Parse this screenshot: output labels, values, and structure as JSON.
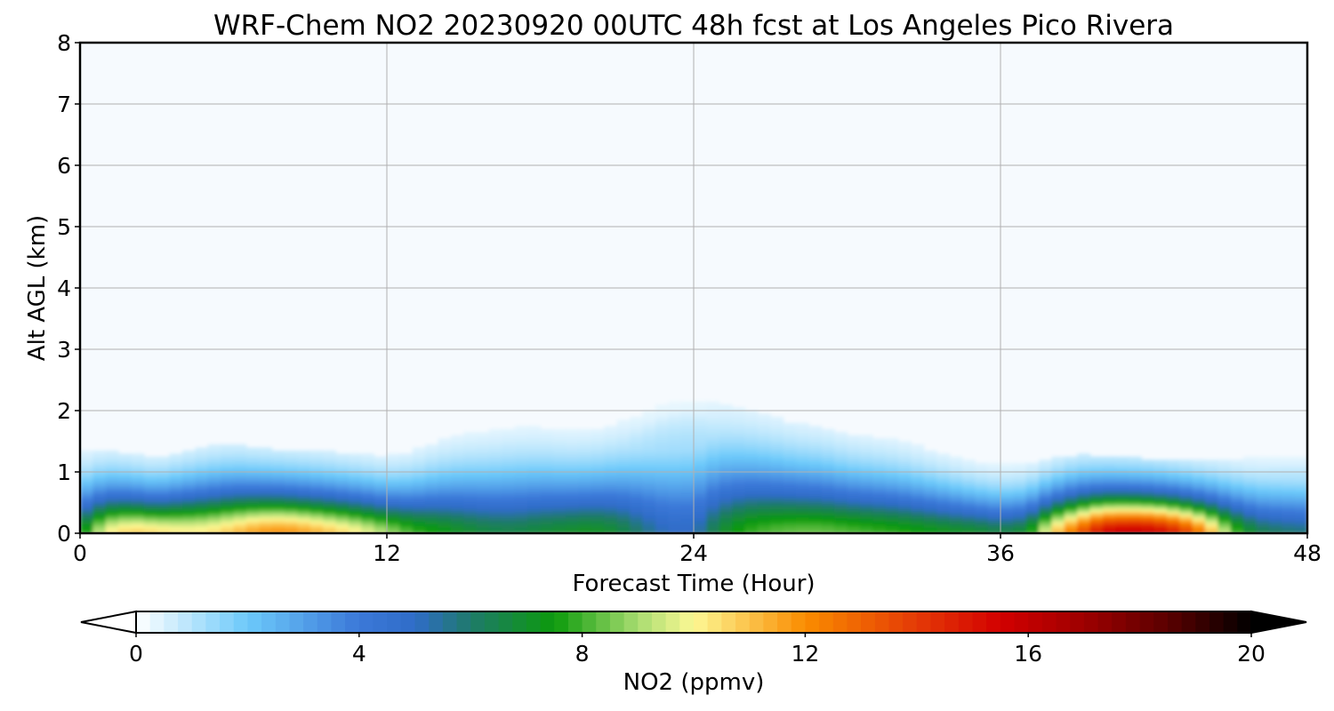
{
  "chart_data": {
    "type": "heatmap",
    "title": "WRF-Chem NO2  20230920 00UTC 48h fcst at Los Angeles Pico Rivera",
    "xlabel": "Forecast Time (Hour)",
    "ylabel": "Alt AGL (km)",
    "xlim": [
      0,
      48
    ],
    "ylim": [
      0,
      8
    ],
    "x_ticks": [
      0,
      12,
      24,
      36,
      48
    ],
    "y_ticks": [
      0,
      1,
      2,
      3,
      4,
      5,
      6,
      7,
      8
    ],
    "grid": true,
    "colorbar": {
      "label": "NO2  (ppmv)",
      "range": [
        0,
        20
      ],
      "ticks": [
        0,
        4,
        8,
        12,
        16,
        20
      ],
      "extend": "both",
      "color_stops": [
        {
          "v": 0,
          "c": "#ffffff"
        },
        {
          "v": 2,
          "c": "#6cc9fa"
        },
        {
          "v": 4,
          "c": "#3b78d8"
        },
        {
          "v": 5,
          "c": "#2f6cc8"
        },
        {
          "v": 6,
          "c": "#1f7a6a"
        },
        {
          "v": 7.5,
          "c": "#0c9a0c"
        },
        {
          "v": 9,
          "c": "#a8dc70"
        },
        {
          "v": 10,
          "c": "#fdf894"
        },
        {
          "v": 12,
          "c": "#fa8c00"
        },
        {
          "v": 14,
          "c": "#e43a06"
        },
        {
          "v": 15.5,
          "c": "#d20000"
        },
        {
          "v": 17,
          "c": "#9e0000"
        },
        {
          "v": 18.5,
          "c": "#5a0000"
        },
        {
          "v": 20,
          "c": "#000000"
        }
      ]
    },
    "surface_no2_ppmv": [
      [
        0,
        7.0
      ],
      [
        1,
        10.0
      ],
      [
        2,
        10.8
      ],
      [
        3,
        10.5
      ],
      [
        4,
        10.2
      ],
      [
        5,
        10.3
      ],
      [
        6,
        11.0
      ],
      [
        7,
        11.8
      ],
      [
        8,
        12.0
      ],
      [
        9,
        11.5
      ],
      [
        10,
        10.8
      ],
      [
        11,
        10.0
      ],
      [
        12,
        9.0
      ],
      [
        13,
        8.0
      ],
      [
        14,
        7.5
      ],
      [
        15,
        7.0
      ],
      [
        16,
        6.6
      ],
      [
        17,
        6.5
      ],
      [
        18,
        6.8
      ],
      [
        19,
        7.0
      ],
      [
        20,
        7.2
      ],
      [
        21,
        6.8
      ],
      [
        22,
        5.8
      ],
      [
        23,
        5.0
      ],
      [
        24,
        5.0
      ],
      [
        25,
        6.8
      ],
      [
        26,
        7.8
      ],
      [
        27,
        8.2
      ],
      [
        28,
        8.4
      ],
      [
        29,
        8.4
      ],
      [
        30,
        8.2
      ],
      [
        31,
        8.0
      ],
      [
        32,
        7.8
      ],
      [
        33,
        7.5
      ],
      [
        34,
        7.2
      ],
      [
        35,
        7.0
      ],
      [
        36,
        6.5
      ],
      [
        37,
        7.0
      ],
      [
        38,
        10.5
      ],
      [
        39,
        13.0
      ],
      [
        40,
        15.5
      ],
      [
        41,
        16.0
      ],
      [
        42,
        15.8
      ],
      [
        43,
        14.5
      ],
      [
        44,
        12.0
      ],
      [
        45,
        8.5
      ],
      [
        46,
        6.5
      ],
      [
        47,
        6.0
      ],
      [
        48,
        5.8
      ]
    ],
    "mixing_depth_km": [
      [
        0,
        1.2
      ],
      [
        1,
        1.22
      ],
      [
        2,
        1.16
      ],
      [
        3,
        1.1
      ],
      [
        4,
        1.2
      ],
      [
        5,
        1.28
      ],
      [
        6,
        1.3
      ],
      [
        7,
        1.25
      ],
      [
        8,
        1.22
      ],
      [
        9,
        1.2
      ],
      [
        10,
        1.18
      ],
      [
        11,
        1.15
      ],
      [
        12,
        1.12
      ],
      [
        13,
        1.2
      ],
      [
        14,
        1.35
      ],
      [
        15,
        1.45
      ],
      [
        16,
        1.5
      ],
      [
        17,
        1.55
      ],
      [
        18,
        1.55
      ],
      [
        19,
        1.5
      ],
      [
        20,
        1.5
      ],
      [
        21,
        1.6
      ],
      [
        22,
        1.75
      ],
      [
        23,
        1.9
      ],
      [
        24,
        1.95
      ],
      [
        25,
        1.9
      ],
      [
        26,
        1.8
      ],
      [
        27,
        1.7
      ],
      [
        28,
        1.6
      ],
      [
        29,
        1.55
      ],
      [
        30,
        1.45
      ],
      [
        31,
        1.4
      ],
      [
        32,
        1.35
      ],
      [
        33,
        1.25
      ],
      [
        34,
        1.15
      ],
      [
        35,
        1.05
      ],
      [
        36,
        1.0
      ],
      [
        37,
        1.02
      ],
      [
        38,
        1.1
      ],
      [
        39,
        1.15
      ],
      [
        40,
        1.12
      ],
      [
        41,
        1.1
      ],
      [
        42,
        1.08
      ],
      [
        43,
        1.06
      ],
      [
        44,
        1.05
      ],
      [
        45,
        1.08
      ],
      [
        46,
        1.1
      ],
      [
        47,
        1.12
      ],
      [
        48,
        1.12
      ]
    ]
  }
}
